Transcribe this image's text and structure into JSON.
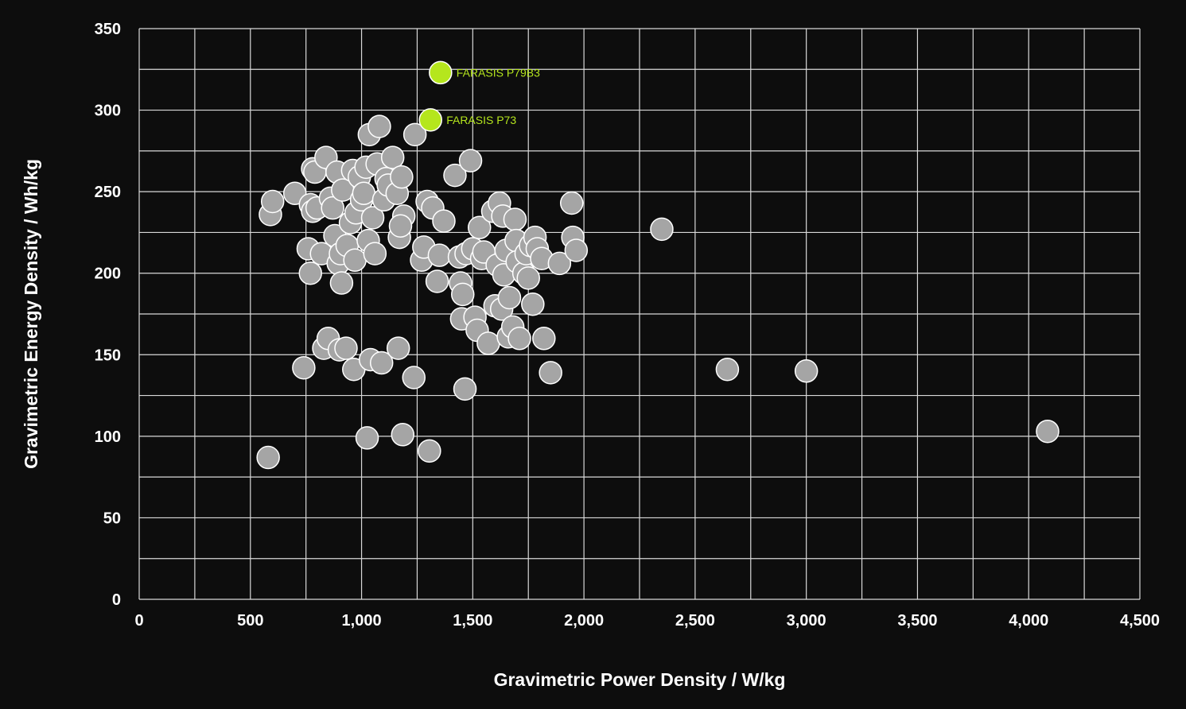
{
  "chart_data": {
    "type": "scatter",
    "xlabel": "Gravimetric Power Density / W/kg",
    "ylabel": "Gravimetric Energy Density / Wh/kg",
    "xlim": [
      0,
      4500
    ],
    "ylim": [
      0,
      350
    ],
    "x_ticks": [
      0,
      500,
      1000,
      1500,
      2000,
      2500,
      3000,
      3500,
      4000,
      4500
    ],
    "x_tick_labels": [
      "0",
      "500",
      "1,000",
      "1,500",
      "2,000",
      "2,500",
      "3,000",
      "3,500",
      "4,000",
      "4,500"
    ],
    "y_ticks": [
      0,
      50,
      100,
      150,
      200,
      250,
      300,
      350
    ],
    "y_tick_labels": [
      "0",
      "50",
      "100",
      "150",
      "200",
      "250",
      "300",
      "350"
    ],
    "grid": true,
    "colors": {
      "background": "#0d0d0d",
      "grid": "#d9d9d9",
      "point_fill": "#a5a5a5",
      "point_stroke": "#ffffff",
      "highlight_fill": "#b5e61d",
      "highlight_label": "#b5e61d",
      "text": "#ffffff"
    },
    "highlighted": [
      {
        "label": "FARASIS P79B3",
        "x": 1355,
        "y": 323
      },
      {
        "label": "FARASIS P73",
        "x": 1310,
        "y": 294
      }
    ],
    "points": [
      {
        "x": 580,
        "y": 87
      },
      {
        "x": 590,
        "y": 236
      },
      {
        "x": 600,
        "y": 244
      },
      {
        "x": 700,
        "y": 249
      },
      {
        "x": 740,
        "y": 142
      },
      {
        "x": 760,
        "y": 215
      },
      {
        "x": 770,
        "y": 200
      },
      {
        "x": 770,
        "y": 242
      },
      {
        "x": 780,
        "y": 264
      },
      {
        "x": 780,
        "y": 238
      },
      {
        "x": 790,
        "y": 262
      },
      {
        "x": 800,
        "y": 240
      },
      {
        "x": 820,
        "y": 212
      },
      {
        "x": 830,
        "y": 154
      },
      {
        "x": 840,
        "y": 271
      },
      {
        "x": 850,
        "y": 160
      },
      {
        "x": 860,
        "y": 246
      },
      {
        "x": 870,
        "y": 240
      },
      {
        "x": 880,
        "y": 223
      },
      {
        "x": 890,
        "y": 262
      },
      {
        "x": 895,
        "y": 206
      },
      {
        "x": 900,
        "y": 153
      },
      {
        "x": 905,
        "y": 212
      },
      {
        "x": 910,
        "y": 194
      },
      {
        "x": 915,
        "y": 251
      },
      {
        "x": 930,
        "y": 154
      },
      {
        "x": 935,
        "y": 217
      },
      {
        "x": 950,
        "y": 231
      },
      {
        "x": 960,
        "y": 263
      },
      {
        "x": 965,
        "y": 141
      },
      {
        "x": 970,
        "y": 208
      },
      {
        "x": 975,
        "y": 237
      },
      {
        "x": 990,
        "y": 259
      },
      {
        "x": 1000,
        "y": 245
      },
      {
        "x": 1010,
        "y": 249
      },
      {
        "x": 1020,
        "y": 265
      },
      {
        "x": 1025,
        "y": 99
      },
      {
        "x": 1030,
        "y": 220
      },
      {
        "x": 1035,
        "y": 285
      },
      {
        "x": 1040,
        "y": 147
      },
      {
        "x": 1050,
        "y": 234
      },
      {
        "x": 1060,
        "y": 212
      },
      {
        "x": 1070,
        "y": 267
      },
      {
        "x": 1080,
        "y": 290
      },
      {
        "x": 1090,
        "y": 145
      },
      {
        "x": 1100,
        "y": 245
      },
      {
        "x": 1110,
        "y": 258
      },
      {
        "x": 1120,
        "y": 254
      },
      {
        "x": 1140,
        "y": 271
      },
      {
        "x": 1160,
        "y": 249
      },
      {
        "x": 1165,
        "y": 154
      },
      {
        "x": 1170,
        "y": 222
      },
      {
        "x": 1180,
        "y": 259
      },
      {
        "x": 1185,
        "y": 101
      },
      {
        "x": 1190,
        "y": 235
      },
      {
        "x": 1175,
        "y": 229
      },
      {
        "x": 1235,
        "y": 136
      },
      {
        "x": 1240,
        "y": 285
      },
      {
        "x": 1270,
        "y": 208
      },
      {
        "x": 1280,
        "y": 216
      },
      {
        "x": 1295,
        "y": 244
      },
      {
        "x": 1305,
        "y": 91
      },
      {
        "x": 1320,
        "y": 240
      },
      {
        "x": 1340,
        "y": 195
      },
      {
        "x": 1350,
        "y": 211
      },
      {
        "x": 1370,
        "y": 232
      },
      {
        "x": 1420,
        "y": 260
      },
      {
        "x": 1440,
        "y": 210
      },
      {
        "x": 1445,
        "y": 194
      },
      {
        "x": 1450,
        "y": 172
      },
      {
        "x": 1455,
        "y": 187
      },
      {
        "x": 1465,
        "y": 129
      },
      {
        "x": 1470,
        "y": 212
      },
      {
        "x": 1490,
        "y": 269
      },
      {
        "x": 1500,
        "y": 215
      },
      {
        "x": 1510,
        "y": 173
      },
      {
        "x": 1520,
        "y": 165
      },
      {
        "x": 1530,
        "y": 228
      },
      {
        "x": 1540,
        "y": 209
      },
      {
        "x": 1550,
        "y": 213
      },
      {
        "x": 1570,
        "y": 157
      },
      {
        "x": 1590,
        "y": 238
      },
      {
        "x": 1600,
        "y": 180
      },
      {
        "x": 1610,
        "y": 205
      },
      {
        "x": 1620,
        "y": 243
      },
      {
        "x": 1630,
        "y": 178
      },
      {
        "x": 1635,
        "y": 235
      },
      {
        "x": 1640,
        "y": 199
      },
      {
        "x": 1650,
        "y": 214
      },
      {
        "x": 1660,
        "y": 161
      },
      {
        "x": 1665,
        "y": 185
      },
      {
        "x": 1680,
        "y": 167
      },
      {
        "x": 1690,
        "y": 233
      },
      {
        "x": 1695,
        "y": 220
      },
      {
        "x": 1700,
        "y": 207
      },
      {
        "x": 1710,
        "y": 160
      },
      {
        "x": 1730,
        "y": 200
      },
      {
        "x": 1740,
        "y": 212
      },
      {
        "x": 1750,
        "y": 197
      },
      {
        "x": 1760,
        "y": 217
      },
      {
        "x": 1770,
        "y": 181
      },
      {
        "x": 1780,
        "y": 222
      },
      {
        "x": 1790,
        "y": 215
      },
      {
        "x": 1810,
        "y": 209
      },
      {
        "x": 1820,
        "y": 160
      },
      {
        "x": 1850,
        "y": 139
      },
      {
        "x": 1890,
        "y": 206
      },
      {
        "x": 1945,
        "y": 243
      },
      {
        "x": 1950,
        "y": 222
      },
      {
        "x": 1965,
        "y": 214
      },
      {
        "x": 2350,
        "y": 227
      },
      {
        "x": 2645,
        "y": 141
      },
      {
        "x": 3000,
        "y": 140
      },
      {
        "x": 4085,
        "y": 103
      }
    ]
  }
}
